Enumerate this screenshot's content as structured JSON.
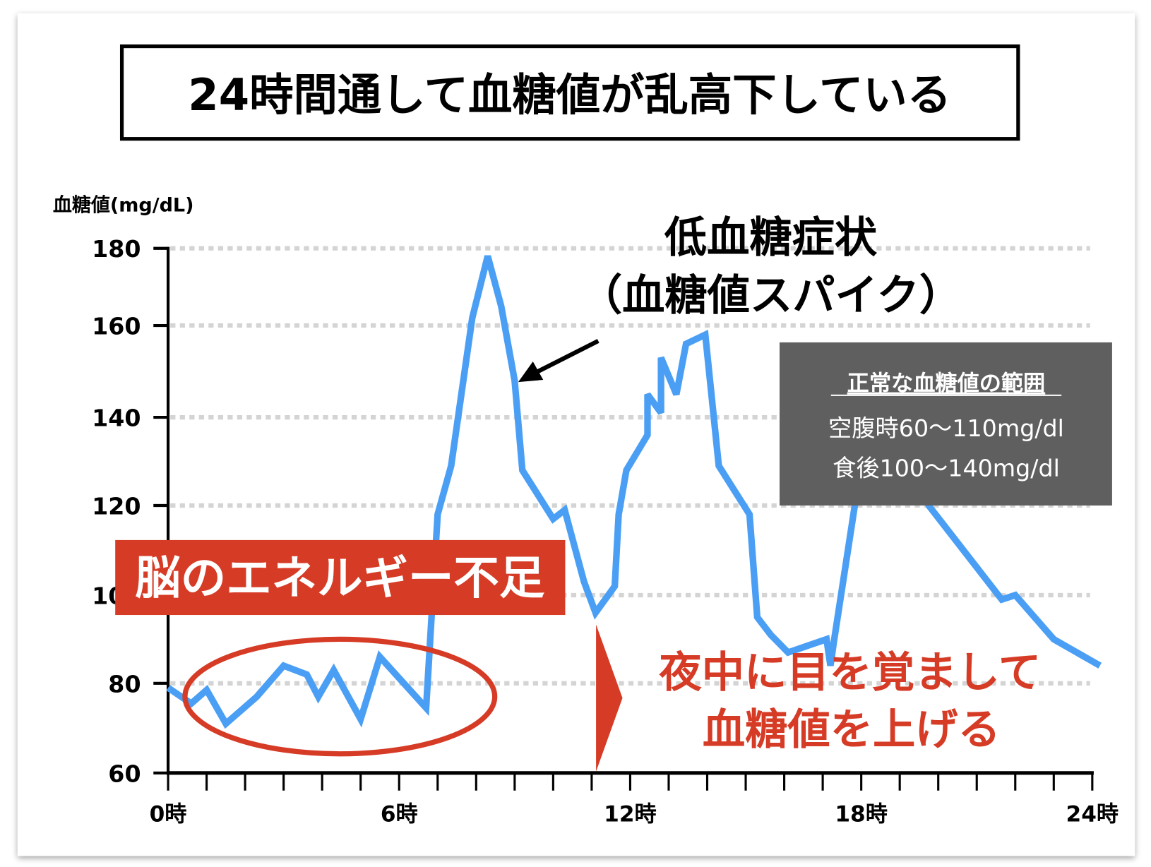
{
  "chart_data": {
    "type": "line",
    "title": "24時間通して血糖値が乱高下している",
    "ylabel": "血糖値(mg/dL)",
    "xlabel": "",
    "ylim": [
      60,
      180
    ],
    "xlim": [
      0,
      24
    ],
    "y_ticks": [
      60,
      80,
      100,
      120,
      140,
      160,
      180
    ],
    "y_tick_labels": [
      "60",
      "80",
      "100",
      "120",
      "140",
      "160",
      "180"
    ],
    "x_tick_labels": [
      {
        "hour": 0,
        "label": "0時"
      },
      {
        "hour": 6,
        "label": "6時"
      },
      {
        "hour": 12,
        "label": "12時"
      },
      {
        "hour": 18,
        "label": "18時"
      },
      {
        "hour": 24,
        "label": "24時"
      }
    ],
    "grid": "horizontal dotted",
    "line_color": "#4a9ff5",
    "series": [
      {
        "x": [
          0,
          0.6,
          1.0,
          1.5,
          2.3,
          3.0,
          3.6,
          3.9,
          4.3,
          5.0,
          5.5,
          6.7,
          7.0,
          7.35,
          7.9,
          8.3,
          8.65,
          9.0,
          9.2,
          10.0,
          10.3,
          10.8,
          11.1,
          11.6,
          11.7,
          11.9,
          12.45,
          12.45,
          12.8,
          12.8,
          13.2,
          13.45,
          13.95,
          14.3,
          15.1,
          15.3,
          15.65,
          16.1,
          17.1,
          17.2,
          17.3,
          17.85,
          18.8,
          19.75,
          21.65,
          22.0,
          23.0,
          24.2
        ],
        "y": [
          79,
          75.5,
          78.5,
          71,
          77,
          84,
          82,
          77,
          83,
          72,
          86,
          74.5,
          118,
          129,
          162,
          178,
          165,
          148,
          128,
          117,
          119,
          103,
          96,
          102,
          118,
          128,
          136,
          145,
          141,
          153,
          145,
          156,
          158,
          129,
          118,
          95,
          91,
          87,
          90,
          84,
          90,
          121,
          156,
          120,
          99,
          100,
          90,
          84
        ]
      }
    ],
    "annotations": {
      "spike_label_1": "低血糖症状",
      "spike_label_2": "（血糖値スパイク）",
      "energy_label": "脳のエネルギー不足",
      "night_label_1": "夜中に目を覚まして",
      "night_label_2": "血糖値を上げる",
      "normal_box_title": "正常な血糖値の範囲",
      "normal_box_line_1": "空腹時60〜110mg/dl",
      "normal_box_line_2": "食後100〜140mg/dl"
    },
    "colors": {
      "accent_red": "#d63b26",
      "box_gray": "#5f5f5f",
      "grid": "#d4d4d4"
    }
  }
}
